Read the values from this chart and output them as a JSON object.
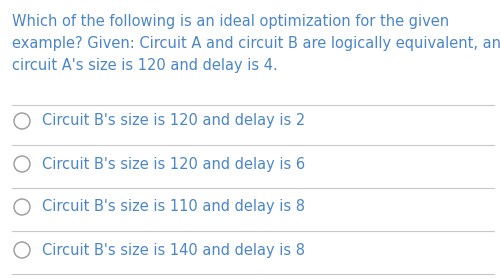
{
  "background_color": "#ffffff",
  "question_text_lines": [
    "Which of the following is an ideal optimization for the given",
    "example? Given: Circuit A and circuit B are logically equivalent, and",
    "circuit A's size is 120 and delay is 4."
  ],
  "options": [
    "Circuit B's size is 120 and delay is 2",
    "Circuit B's size is 120 and delay is 6",
    "Circuit B's size is 110 and delay is 8",
    "Circuit B's size is 140 and delay is 8"
  ],
  "text_color": "#4a86c8",
  "option_text_color": "#4a86c8",
  "divider_color": "#c8c8c8",
  "circle_edge_color": "#999999",
  "question_fontsize": 10.5,
  "option_fontsize": 10.5,
  "fig_width": 5.02,
  "fig_height": 2.79,
  "dpi": 100
}
